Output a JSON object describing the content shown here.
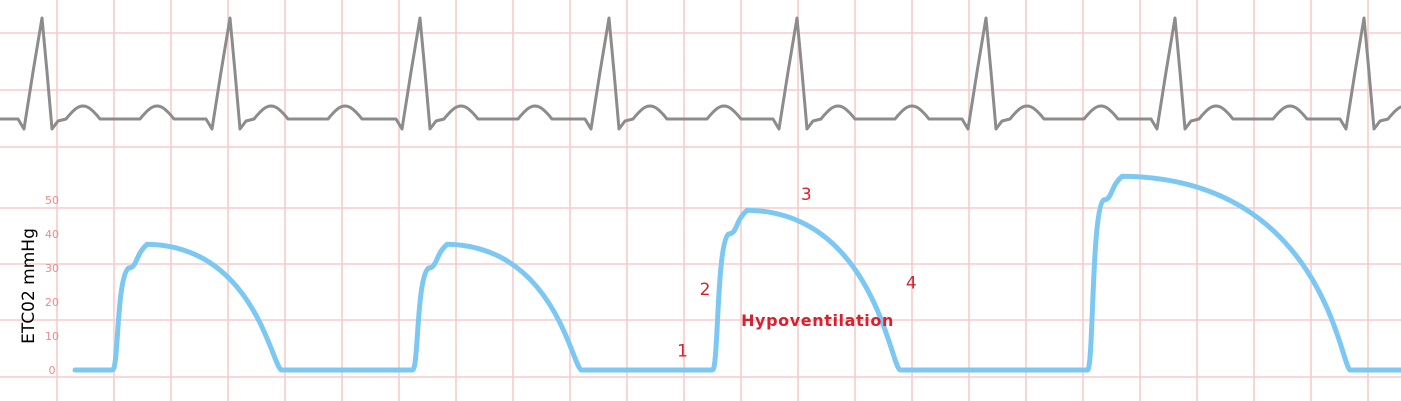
{
  "chart_data": {
    "type": "line",
    "title": "",
    "ylabel": "ETC02 mmHg",
    "ylim": [
      0,
      50
    ],
    "yticks": [
      0,
      10,
      20,
      30,
      40,
      50
    ],
    "grid": true,
    "series": [
      {
        "values": [
          [
            0,
            0
          ],
          [
            1,
            0
          ],
          [
            1.5,
            30
          ],
          [
            4.5,
            37
          ],
          [
            5.5,
            0
          ],
          [
            9,
            0
          ],
          [
            9.5,
            30
          ],
          [
            12.5,
            37
          ],
          [
            13.5,
            0
          ],
          [
            17,
            0
          ],
          [
            17.5,
            40
          ],
          [
            21,
            47
          ],
          [
            22,
            0
          ],
          [
            27,
            0
          ],
          [
            27.5,
            50
          ],
          [
            33,
            57
          ],
          [
            34,
            0
          ],
          [
            36,
            0
          ]
        ]
      }
    ],
    "phase_labels": [
      {
        "text": "1",
        "x": 16.2,
        "y": 4
      },
      {
        "text": "2",
        "x": 16.8,
        "y": 22
      },
      {
        "text": "3",
        "x": 19.5,
        "y": 50
      },
      {
        "text": "4",
        "x": 22.3,
        "y": 24
      }
    ],
    "annotations": [
      {
        "text": "Hypoventilation",
        "x": 19.8,
        "y": 13
      }
    ],
    "colors": {
      "capnogram": "#7cc8f2",
      "ecg": "#8c8c8c",
      "grid": "#f6cccc",
      "tick_labels": "#ef8a8a",
      "annotation": "#d7212e",
      "axis_label": "#000000"
    }
  }
}
